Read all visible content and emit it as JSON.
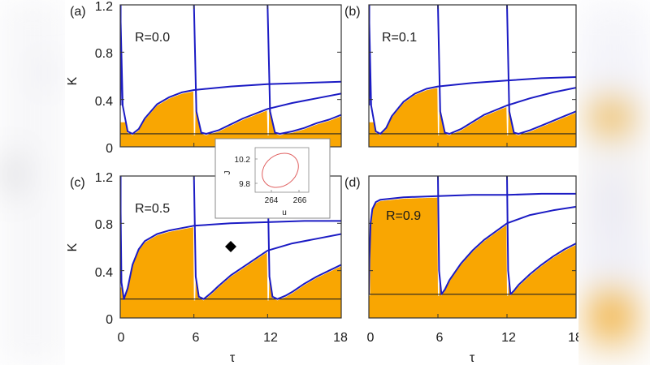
{
  "figure": {
    "y_axis_label": "K",
    "x_axis_label": "τ",
    "colors": {
      "fill": "#f9a602",
      "curve": "#1b1bc4",
      "baseline": "#222222",
      "inset_curve": "#e06060",
      "frame": "#333333"
    }
  },
  "chart_data": [
    {
      "panel": "(a)",
      "type": "area",
      "annotation": "R=0.0",
      "xlabel": "τ",
      "ylabel": "K",
      "xlim": [
        0,
        18
      ],
      "ylim": [
        0,
        1.2
      ],
      "xticks": [
        "0",
        "6",
        "12",
        "18"
      ],
      "yticks": [
        "0",
        "0.4",
        "0.8",
        "1.2"
      ],
      "baseline_K": 0.11,
      "drive_period": 6,
      "curves": [
        {
          "name": "branch from τ=0",
          "x": [
            0,
            0.2,
            0.6,
            1.0,
            1.5,
            2,
            3,
            4,
            5,
            6,
            9,
            12,
            15,
            18
          ],
          "y": [
            1.2,
            0.35,
            0.13,
            0.11,
            0.15,
            0.24,
            0.36,
            0.42,
            0.46,
            0.48,
            0.51,
            0.53,
            0.54,
            0.55
          ]
        },
        {
          "name": "branch from τ=6",
          "x": [
            6,
            6.2,
            6.6,
            7,
            8,
            9,
            10,
            12,
            14,
            16,
            18
          ],
          "y": [
            1.2,
            0.3,
            0.12,
            0.11,
            0.14,
            0.19,
            0.24,
            0.32,
            0.37,
            0.41,
            0.45
          ]
        },
        {
          "name": "branch from τ=12",
          "x": [
            12,
            12.2,
            12.6,
            13,
            14,
            15,
            16,
            17,
            18
          ],
          "y": [
            1.2,
            0.3,
            0.12,
            0.11,
            0.13,
            0.16,
            0.2,
            0.23,
            0.27
          ]
        }
      ],
      "filled_region": {
        "x": [
          0,
          1,
          2,
          3,
          4,
          5,
          6,
          6.01,
          7,
          8,
          10,
          12,
          12.01,
          13,
          15,
          18
        ],
        "y": [
          0.22,
          0.11,
          0.24,
          0.36,
          0.42,
          0.45,
          0.46,
          0.11,
          0.11,
          0.14,
          0.24,
          0.33,
          0.11,
          0.11,
          0.16,
          0.27
        ]
      }
    },
    {
      "panel": "(b)",
      "type": "area",
      "annotation": "R=0.1",
      "xlabel": "τ",
      "ylabel": "K",
      "xlim": [
        0,
        18
      ],
      "ylim": [
        0,
        1.2
      ],
      "baseline_K": 0.11,
      "drive_period": 6,
      "curves": [
        {
          "name": "branch from τ=0",
          "x": [
            0,
            0.2,
            0.6,
            1.0,
            1.5,
            2,
            3,
            4,
            5,
            6,
            9,
            12,
            15,
            18
          ],
          "y": [
            1.2,
            0.35,
            0.13,
            0.11,
            0.16,
            0.26,
            0.38,
            0.45,
            0.49,
            0.51,
            0.54,
            0.56,
            0.58,
            0.59
          ]
        },
        {
          "name": "branch from τ=6",
          "x": [
            6,
            6.2,
            6.6,
            7,
            8,
            9,
            10,
            12,
            14,
            16,
            18
          ],
          "y": [
            1.2,
            0.3,
            0.12,
            0.11,
            0.15,
            0.21,
            0.27,
            0.35,
            0.41,
            0.46,
            0.5
          ]
        },
        {
          "name": "branch from τ=12",
          "x": [
            12,
            12.2,
            12.6,
            13,
            14,
            15,
            16,
            17,
            18
          ],
          "y": [
            1.2,
            0.3,
            0.12,
            0.11,
            0.14,
            0.18,
            0.22,
            0.26,
            0.3
          ]
        }
      ]
    },
    {
      "panel": "(c)",
      "type": "area",
      "annotation": "R=0.5",
      "xlabel": "τ",
      "ylabel": "K",
      "xlim": [
        0,
        18
      ],
      "ylim": [
        0,
        1.2
      ],
      "xticks": [
        "0",
        "6",
        "12",
        "18"
      ],
      "yticks": [
        "0",
        "0.4",
        "0.8",
        "1.2"
      ],
      "baseline_K": 0.16,
      "drive_period": 6,
      "marker": {
        "shape": "diamond",
        "x": 8.8,
        "y": 0.6
      },
      "curves": [
        {
          "name": "branch from τ=0",
          "x": [
            0,
            0.1,
            0.3,
            0.6,
            1.0,
            1.5,
            2,
            3,
            4,
            5,
            6,
            9,
            12,
            15,
            18
          ],
          "y": [
            1.2,
            0.3,
            0.16,
            0.25,
            0.45,
            0.58,
            0.65,
            0.71,
            0.74,
            0.76,
            0.78,
            0.8,
            0.81,
            0.82,
            0.82
          ]
        },
        {
          "name": "branch from τ=6",
          "x": [
            6,
            6.15,
            6.4,
            6.8,
            7.5,
            8,
            9,
            10,
            12,
            14,
            16,
            18
          ],
          "y": [
            1.2,
            0.35,
            0.18,
            0.16,
            0.22,
            0.27,
            0.36,
            0.43,
            0.57,
            0.63,
            0.67,
            0.71
          ]
        },
        {
          "name": "branch from τ=12",
          "x": [
            12,
            12.15,
            12.4,
            12.8,
            13.5,
            14,
            15,
            16,
            17,
            18
          ],
          "y": [
            1.2,
            0.35,
            0.18,
            0.16,
            0.19,
            0.22,
            0.29,
            0.35,
            0.4,
            0.45
          ]
        }
      ]
    },
    {
      "panel": "(d)",
      "type": "area",
      "annotation": "R=0.9",
      "xlabel": "τ",
      "ylabel": "K",
      "xlim": [
        0,
        18
      ],
      "ylim": [
        0,
        1.2
      ],
      "xticks": [
        "0",
        "6",
        "12",
        "18"
      ],
      "baseline_K": 0.2,
      "drive_period": 6,
      "curves": [
        {
          "name": "branch from τ=0",
          "x": [
            0,
            0.05,
            0.15,
            0.3,
            0.6,
            1.0,
            2,
            3,
            6,
            9,
            12,
            15,
            18
          ],
          "y": [
            0.2,
            0.5,
            0.8,
            0.92,
            0.98,
            1.0,
            1.01,
            1.02,
            1.03,
            1.04,
            1.04,
            1.05,
            1.05
          ]
        },
        {
          "name": "branch from τ=6",
          "x": [
            6,
            6.1,
            6.3,
            6.6,
            7,
            8,
            9,
            10,
            12,
            14,
            16,
            18
          ],
          "y": [
            1.2,
            0.4,
            0.2,
            0.24,
            0.32,
            0.46,
            0.57,
            0.66,
            0.8,
            0.87,
            0.91,
            0.94
          ]
        },
        {
          "name": "branch from τ=12",
          "x": [
            12,
            12.1,
            12.3,
            12.6,
            13,
            14,
            15,
            16,
            17,
            18
          ],
          "y": [
            1.2,
            0.4,
            0.2,
            0.23,
            0.28,
            0.37,
            0.45,
            0.52,
            0.58,
            0.63
          ]
        }
      ]
    },
    {
      "panel": "inset",
      "type": "line",
      "xlabel": "u",
      "ylabel": "J",
      "xticks": [
        "264",
        "266"
      ],
      "yticks": [
        "9.8",
        "10.2"
      ],
      "description": "closed elliptical orbit (limit cycle)",
      "ellipse": {
        "center_u": 265.1,
        "center_J": 10.0,
        "u_range": [
          263.9,
          266.5
        ],
        "J_range": [
          9.76,
          10.28
        ]
      }
    }
  ],
  "labels": {
    "panel_a": "(a)",
    "panel_b": "(b)",
    "panel_c": "(c)",
    "panel_d": "(d)",
    "r_a": "R=0.0",
    "r_b": "R=0.1",
    "r_c": "R=0.5",
    "r_d": "R=0.9",
    "ytick_0": "0",
    "ytick_04": "0.4",
    "ytick_08": "0.8",
    "ytick_12": "1.2",
    "xtick_0": "0",
    "xtick_6": "6",
    "xtick_12": "12",
    "xtick_18": "18",
    "inset_y1": "10.2",
    "inset_y2": "9.8",
    "inset_x1": "264",
    "inset_x2": "266",
    "inset_xlabel": "u",
    "inset_ylabel": "J"
  }
}
